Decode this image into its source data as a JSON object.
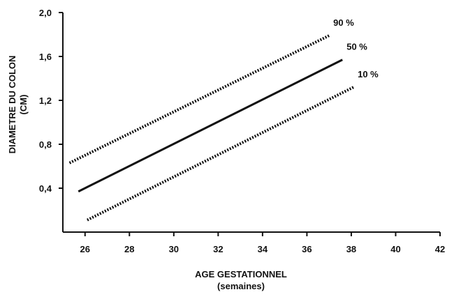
{
  "chart_data": {
    "type": "line",
    "title": "",
    "xlabel": "AGE GESTATIONNEL",
    "xlabel_sub": "(semaines)",
    "ylabel": "DIAMETRE DU COLON",
    "ylabel_sub": "(CM)",
    "xlim": [
      25,
      42
    ],
    "ylim": [
      0,
      2.0
    ],
    "xticks": [
      26,
      28,
      30,
      32,
      34,
      36,
      38,
      40,
      42
    ],
    "xtick_labels": [
      "26",
      "28",
      "30",
      "32",
      "34",
      "36",
      "38",
      "40",
      "42"
    ],
    "yticks": [
      0.4,
      0.8,
      1.2,
      1.6,
      2.0
    ],
    "ytick_labels": [
      "0,4",
      "0,8",
      "1,2",
      "1,6",
      "2,0"
    ],
    "grid": false,
    "series": [
      {
        "name": "90 %",
        "style": "dotted",
        "x": [
          25.3,
          37.0
        ],
        "y": [
          0.63,
          1.79
        ]
      },
      {
        "name": "50 %",
        "style": "solid",
        "x": [
          25.7,
          37.6
        ],
        "y": [
          0.37,
          1.57
        ]
      },
      {
        "name": "10 %",
        "style": "dotted",
        "x": [
          26.1,
          38.1
        ],
        "y": [
          0.11,
          1.32
        ]
      }
    ],
    "colors": {
      "line": "#111111"
    }
  }
}
